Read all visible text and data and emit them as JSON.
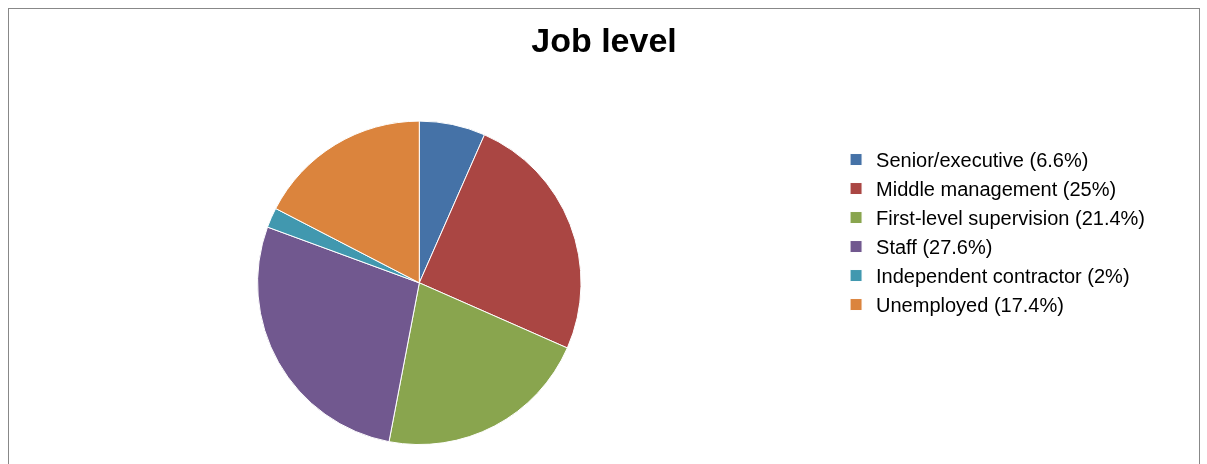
{
  "chart_data": {
    "type": "pie",
    "title": "Job level",
    "categories": [
      "Senior/executive (6.6%)",
      "Middle management (25%)",
      "First-level supervision (21.4%)",
      "Staff (27.6%)",
      "Independent contractor (2%)",
      "Unemployed (17.4%)"
    ],
    "values": [
      6.6,
      25,
      21.4,
      27.6,
      2,
      17.4
    ],
    "colors": [
      "#4572a7",
      "#aa4643",
      "#89a54e",
      "#71588f",
      "#4198af",
      "#db843d"
    ],
    "legend": "right"
  }
}
